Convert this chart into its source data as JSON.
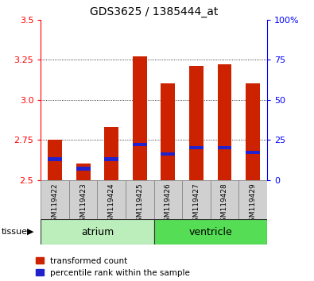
{
  "title": "GDS3625 / 1385444_at",
  "samples": [
    "GSM119422",
    "GSM119423",
    "GSM119424",
    "GSM119425",
    "GSM119426",
    "GSM119427",
    "GSM119428",
    "GSM119429"
  ],
  "red_values": [
    2.75,
    2.6,
    2.83,
    3.27,
    3.1,
    3.21,
    3.22,
    3.1
  ],
  "blue_values": [
    2.63,
    2.57,
    2.63,
    2.72,
    2.66,
    2.7,
    2.7,
    2.67
  ],
  "ylim": [
    2.5,
    3.5
  ],
  "yticks": [
    2.5,
    2.75,
    3.0,
    3.25,
    3.5
  ],
  "right_yticks": [
    0,
    25,
    50,
    75,
    100
  ],
  "right_ylim": [
    0,
    100
  ],
  "groups": [
    {
      "label": "atrium",
      "start": 0,
      "end": 4,
      "color": "#bbeebb"
    },
    {
      "label": "ventricle",
      "start": 4,
      "end": 8,
      "color": "#55dd55"
    }
  ],
  "bar_width": 0.5,
  "bar_color_red": "#cc2200",
  "bar_color_blue": "#2222cc",
  "plot_bg": "#ffffff",
  "sample_box_color": "#d0d0d0",
  "tissue_label": "tissue",
  "legend_entries": [
    "transformed count",
    "percentile rank within the sample"
  ],
  "gridline_ticks": [
    2.75,
    3.0,
    3.25
  ]
}
